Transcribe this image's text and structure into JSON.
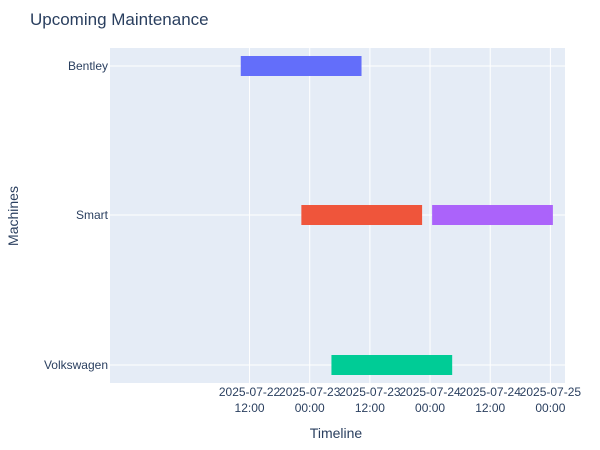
{
  "chart_data": {
    "type": "gantt",
    "title": "Upcoming Maintenance",
    "xlabel": "Timeline",
    "ylabel": "Machines",
    "categories": [
      "Bentley",
      "Smart",
      "Volkswagen"
    ],
    "x_range": [
      "2025-07-21T08:10:00",
      "2025-07-25T02:55:00"
    ],
    "x_ticks": [
      {
        "value": "2025-07-22T12:00:00",
        "line1": "2025-07-22",
        "line2": "12:00"
      },
      {
        "value": "2025-07-23T00:00:00",
        "line1": "2025-07-23",
        "line2": "00:00"
      },
      {
        "value": "2025-07-23T12:00:00",
        "line1": "2025-07-23",
        "line2": "12:00"
      },
      {
        "value": "2025-07-24T00:00:00",
        "line1": "2025-07-24",
        "line2": "00:00"
      },
      {
        "value": "2025-07-24T12:00:00",
        "line1": "2025-07-24",
        "line2": "12:00"
      },
      {
        "value": "2025-07-25T00:00:00",
        "line1": "2025-07-25",
        "line2": "00:00"
      }
    ],
    "tasks": [
      {
        "machine": "Bentley",
        "start": "2025-07-22T10:15:00",
        "end": "2025-07-23T10:20:00",
        "color": "#636efa"
      },
      {
        "machine": "Smart",
        "start": "2025-07-22T22:20:00",
        "end": "2025-07-23T22:25:00",
        "color": "#ef553b"
      },
      {
        "machine": "Smart",
        "start": "2025-07-24T00:25:00",
        "end": "2025-07-25T00:30:00",
        "color": "#ab63fa"
      },
      {
        "machine": "Volkswagen",
        "start": "2025-07-23T04:20:00",
        "end": "2025-07-24T04:25:00",
        "color": "#00cc96"
      }
    ],
    "grid": true,
    "colors": {
      "plot_bg": "#e5ecf6",
      "grid": "#ffffff",
      "text": "#2a3f5f"
    }
  }
}
